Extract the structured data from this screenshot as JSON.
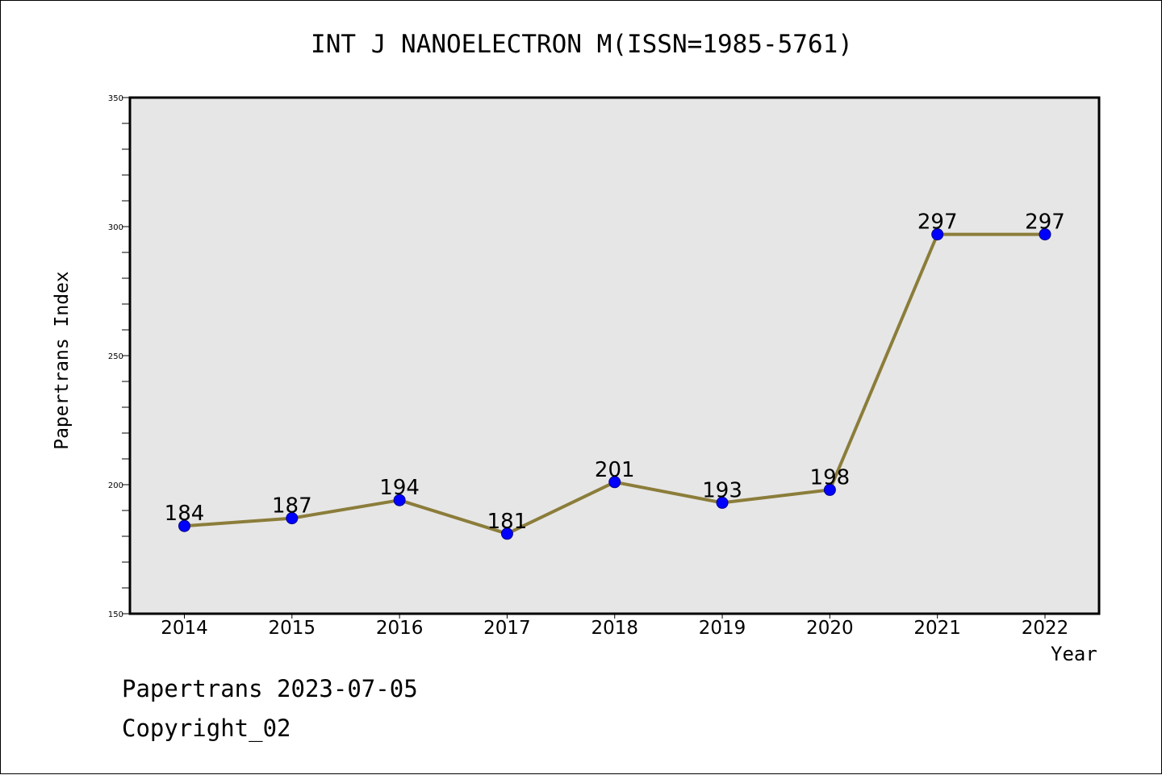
{
  "header": {
    "title": "INT J NANOELECTRON M(ISSN=1985-5761)"
  },
  "footer": {
    "line1": "Papertrans 2023-07-05",
    "line2": "Copyright_02"
  },
  "colors": {
    "plot_background": "#e6e6e6",
    "line": "#8b7d3a",
    "marker": "#0000ff",
    "marker_edge": "#00008b"
  },
  "chart_data": {
    "type": "line",
    "title": "INT J NANOELECTRON M(ISSN=1985-5761)",
    "xlabel": "Year",
    "ylabel": "Papertrans Index",
    "categories": [
      "2014",
      "2015",
      "2016",
      "2017",
      "2018",
      "2019",
      "2020",
      "2021",
      "2022"
    ],
    "values": [
      184,
      187,
      194,
      181,
      201,
      193,
      198,
      297,
      297
    ],
    "ylim": [
      150,
      350
    ],
    "yticks": [
      150,
      200,
      250,
      300,
      350
    ],
    "grid": false,
    "legend": "none"
  }
}
